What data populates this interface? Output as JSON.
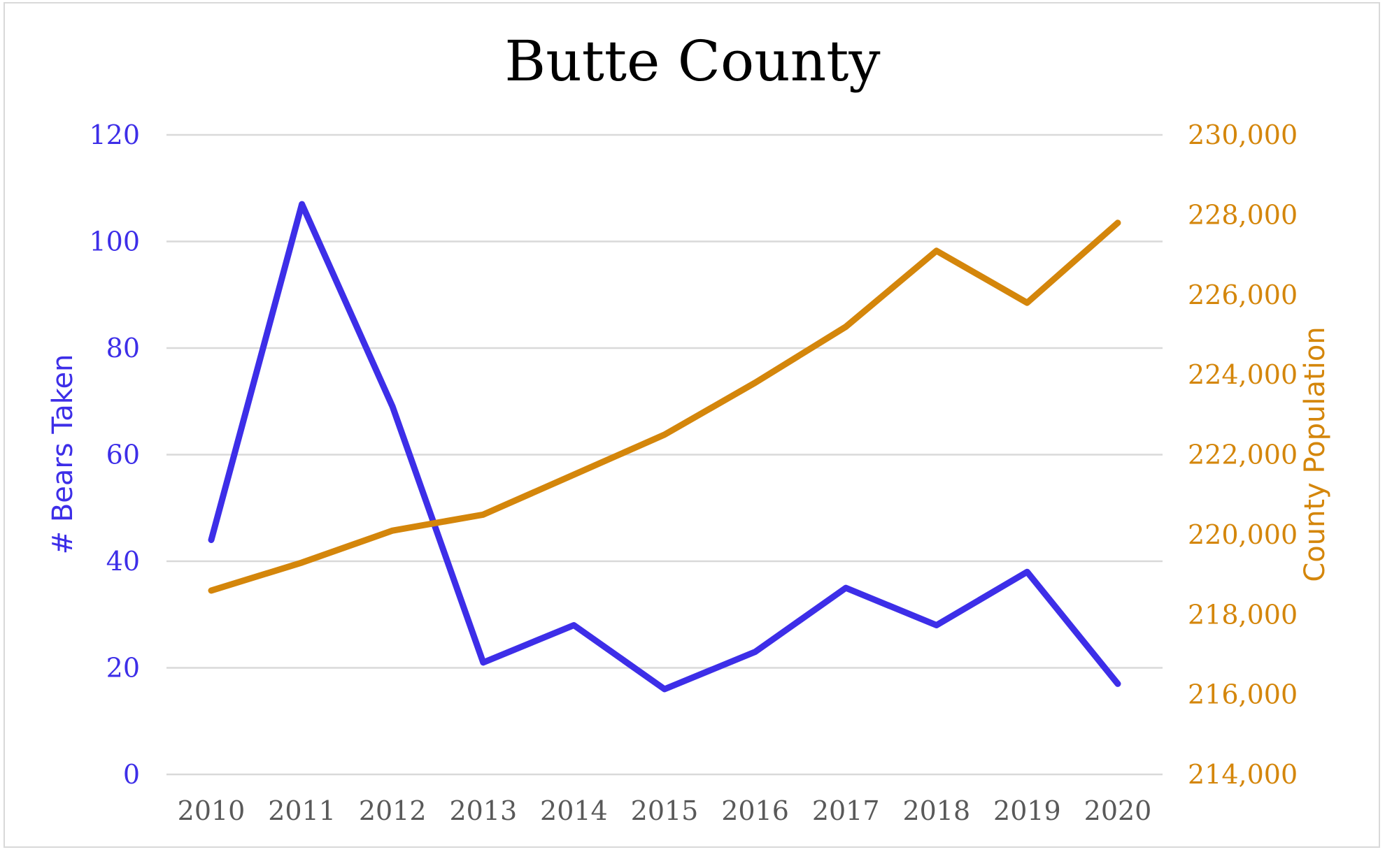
{
  "chart_data": {
    "type": "line",
    "title": "Butte County",
    "categories": [
      "2010",
      "2011",
      "2012",
      "2013",
      "2014",
      "2015",
      "2016",
      "2017",
      "2018",
      "2019",
      "2020"
    ],
    "series": [
      {
        "name": "# Bears Taken",
        "axis": "left",
        "color": "#3d2ee8",
        "values": [
          44,
          107,
          69,
          21,
          28,
          16,
          23,
          35,
          28,
          38,
          17
        ]
      },
      {
        "name": "County Population",
        "axis": "right",
        "color": "#d4860b",
        "values": [
          218600,
          219300,
          220100,
          220500,
          221500,
          222500,
          223800,
          225200,
          227100,
          225800,
          227800
        ]
      }
    ],
    "y_left": {
      "label": "# Bears Taken",
      "range": [
        0,
        120
      ],
      "ticks": [
        "0",
        "20",
        "40",
        "60",
        "80",
        "100",
        "120"
      ]
    },
    "y_right": {
      "label": "County Population",
      "range": [
        214000,
        230000
      ],
      "ticks": [
        "214,000",
        "216,000",
        "218,000",
        "220,000",
        "222,000",
        "224,000",
        "226,000",
        "228,000",
        "230,000"
      ]
    },
    "grid": true,
    "legend": "none"
  }
}
